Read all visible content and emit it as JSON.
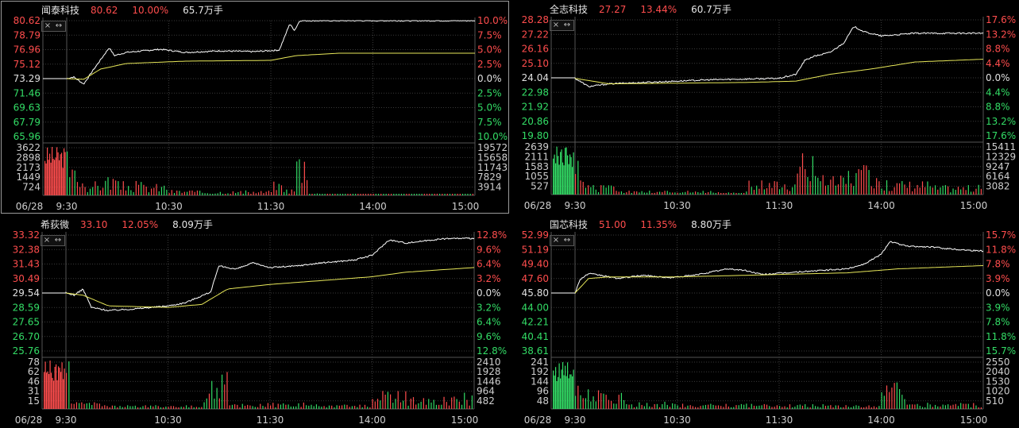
{
  "colors": {
    "up": "#ff4d4d",
    "down": "#33dd66",
    "price_line": "#ffffff",
    "avg_line": "#e8e85a",
    "grid": "#3a3a3a",
    "text": "#cfcfcf"
  },
  "time_labels": [
    "06/28",
    "9:30",
    "10:30",
    "11:30",
    "14:00",
    "15:00"
  ],
  "controls": {
    "close": "×",
    "expand": "↔"
  },
  "panels": [
    {
      "name": "闻泰科技",
      "price": "80.62",
      "change": "10.00%",
      "volume": "65.7万手",
      "selected": true,
      "chart_data": {
        "type": "line",
        "price_axis": {
          "left": [
            "80.62",
            "78.79",
            "76.96",
            "75.12",
            "73.29",
            "71.46",
            "69.63",
            "67.79",
            "65.96"
          ],
          "right": [
            "10.0%",
            "7.5%",
            "5.0%",
            "2.5%",
            "0.0%",
            "2.5%",
            "5.0%",
            "7.5%",
            "10.0%"
          ],
          "min": 65.96,
          "max": 80.62,
          "prev_close": 73.29
        },
        "volume_axis": {
          "left": [
            "3622",
            "2898",
            "2173",
            "1449",
            "724"
          ],
          "right": [
            "19572",
            "15658",
            "11743",
            "7829",
            "3914"
          ],
          "max": 3622
        },
        "x": [
          "9:30",
          "10:30",
          "11:30",
          "14:00",
          "15:00"
        ],
        "series": [
          {
            "type": "price",
            "points": [
              [
                0,
                73.29
              ],
              [
                4,
                73.5
              ],
              [
                10,
                72.6
              ],
              [
                15,
                74.2
              ],
              [
                22,
                76.3
              ],
              [
                25,
                77.2
              ],
              [
                28,
                76.2
              ],
              [
                35,
                76.6
              ],
              [
                45,
                76.8
              ],
              [
                55,
                77.0
              ],
              [
                70,
                76.6
              ],
              [
                90,
                76.8
              ],
              [
                110,
                76.7
              ],
              [
                125,
                76.9
              ],
              [
                128,
                78.5
              ],
              [
                131,
                80.2
              ],
              [
                134,
                79.4
              ],
              [
                137,
                80.62
              ],
              [
                150,
                80.62
              ],
              [
                170,
                80.62
              ],
              [
                240,
                80.62
              ]
            ]
          },
          {
            "type": "avg",
            "points": [
              [
                0,
                73.29
              ],
              [
                10,
                73.2
              ],
              [
                20,
                74.5
              ],
              [
                35,
                75.2
              ],
              [
                70,
                75.5
              ],
              [
                120,
                75.6
              ],
              [
                135,
                76.2
              ],
              [
                160,
                76.5
              ],
              [
                240,
                76.5
              ]
            ]
          }
        ],
        "volume": {
          "segments": [
            [
              0,
              1,
              1.0
            ],
            [
              1,
              3,
              0.95
            ],
            [
              3,
              8,
              0.6
            ],
            [
              8,
              12,
              0.4
            ],
            [
              12,
              20,
              0.3
            ],
            [
              20,
              30,
              0.45
            ],
            [
              30,
              45,
              0.3
            ],
            [
              45,
              60,
              0.25
            ],
            [
              60,
              75,
              0.12
            ],
            [
              75,
              100,
              0.1
            ],
            [
              100,
              120,
              0.1
            ],
            [
              120,
              128,
              0.3
            ],
            [
              128,
              135,
              0.15
            ],
            [
              135,
              142,
              1.0
            ],
            [
              142,
              150,
              0.05
            ],
            [
              150,
              240,
              0.03
            ]
          ]
        }
      }
    },
    {
      "name": "全志科技",
      "price": "27.27",
      "change": "13.44%",
      "volume": "60.7万手",
      "selected": false,
      "chart_data": {
        "type": "line",
        "price_axis": {
          "left": [
            "28.28",
            "27.22",
            "26.16",
            "25.10",
            "24.04",
            "22.98",
            "21.92",
            "20.86",
            "19.80"
          ],
          "right": [
            "17.6%",
            "13.2%",
            "8.8%",
            "4.4%",
            "0.0%",
            "4.4%",
            "8.8%",
            "13.2%",
            "17.6%"
          ],
          "min": 19.8,
          "max": 28.28,
          "prev_close": 24.04
        },
        "volume_axis": {
          "left": [
            "2639",
            "2111",
            "1583",
            "1055",
            "527"
          ],
          "right": [
            "15411",
            "12329",
            "9247",
            "6164",
            "3082"
          ],
          "max": 2639
        },
        "x": [
          "9:30",
          "10:30",
          "11:30",
          "14:00",
          "15:00"
        ],
        "series": [
          {
            "type": "price",
            "points": [
              [
                0,
                24.0
              ],
              [
                8,
                23.4
              ],
              [
                20,
                23.6
              ],
              [
                40,
                23.7
              ],
              [
                80,
                23.9
              ],
              [
                120,
                24.0
              ],
              [
                130,
                24.3
              ],
              [
                135,
                25.3
              ],
              [
                140,
                25.6
              ],
              [
                150,
                25.9
              ],
              [
                158,
                26.6
              ],
              [
                164,
                27.8
              ],
              [
                170,
                27.4
              ],
              [
                180,
                27.1
              ],
              [
                190,
                27.2
              ],
              [
                200,
                27.3
              ],
              [
                240,
                27.3
              ]
            ]
          },
          {
            "type": "avg",
            "points": [
              [
                0,
                24.0
              ],
              [
                20,
                23.6
              ],
              [
                100,
                23.7
              ],
              [
                130,
                23.8
              ],
              [
                150,
                24.3
              ],
              [
                175,
                24.7
              ],
              [
                200,
                25.2
              ],
              [
                240,
                25.4
              ]
            ]
          }
        ],
        "volume": {
          "segments": [
            [
              0,
              2,
              1.0
            ],
            [
              2,
              5,
              0.7
            ],
            [
              5,
              25,
              0.2
            ],
            [
              25,
              80,
              0.08
            ],
            [
              80,
              100,
              0.05
            ],
            [
              100,
              130,
              0.3
            ],
            [
              130,
              140,
              1.0
            ],
            [
              140,
              160,
              0.4
            ],
            [
              160,
              180,
              0.6
            ],
            [
              180,
              210,
              0.3
            ],
            [
              210,
              240,
              0.2
            ]
          ]
        }
      }
    },
    {
      "name": "希荻微",
      "price": "33.10",
      "change": "12.05%",
      "volume": "8.09万手",
      "selected": false,
      "chart_data": {
        "type": "line",
        "price_axis": {
          "left": [
            "33.32",
            "32.38",
            "31.43",
            "30.49",
            "29.54",
            "28.59",
            "27.65",
            "26.70",
            "25.76"
          ],
          "right": [
            "12.8%",
            "9.6%",
            "6.4%",
            "3.2%",
            "0.0%",
            "3.2%",
            "6.4%",
            "9.6%",
            "12.8%"
          ],
          "min": 25.76,
          "max": 33.32,
          "prev_close": 29.54
        },
        "volume_axis": {
          "left": [
            "78",
            "62",
            "46",
            "31",
            "15"
          ],
          "right": [
            "2410",
            "1928",
            "1446",
            "964",
            "482"
          ],
          "max": 78
        },
        "x": [
          "9:30",
          "10:30",
          "11:30",
          "14:00",
          "15:00"
        ],
        "series": [
          {
            "type": "price",
            "points": [
              [
                0,
                29.54
              ],
              [
                5,
                29.4
              ],
              [
                10,
                29.8
              ],
              [
                15,
                28.6
              ],
              [
                25,
                28.4
              ],
              [
                40,
                28.5
              ],
              [
                60,
                28.7
              ],
              [
                70,
                28.9
              ],
              [
                85,
                29.6
              ],
              [
                90,
                31.3
              ],
              [
                100,
                31.1
              ],
              [
                110,
                31.5
              ],
              [
                120,
                31.2
              ],
              [
                135,
                31.3
              ],
              [
                150,
                31.5
              ],
              [
                170,
                31.7
              ],
              [
                180,
                32.0
              ],
              [
                190,
                33.0
              ],
              [
                200,
                32.8
              ],
              [
                215,
                33.0
              ],
              [
                225,
                33.1
              ],
              [
                240,
                33.1
              ]
            ]
          },
          {
            "type": "avg",
            "points": [
              [
                0,
                29.54
              ],
              [
                10,
                29.4
              ],
              [
                25,
                28.7
              ],
              [
                60,
                28.6
              ],
              [
                80,
                28.8
              ],
              [
                95,
                29.8
              ],
              [
                120,
                30.1
              ],
              [
                180,
                30.6
              ],
              [
                200,
                30.9
              ],
              [
                240,
                31.2
              ]
            ]
          }
        ],
        "volume": {
          "segments": [
            [
              0,
              3,
              1.0
            ],
            [
              3,
              20,
              0.15
            ],
            [
              20,
              60,
              0.08
            ],
            [
              60,
              80,
              0.08
            ],
            [
              80,
              85,
              0.4
            ],
            [
              85,
              90,
              0.6
            ],
            [
              90,
              95,
              0.9
            ],
            [
              95,
              140,
              0.15
            ],
            [
              140,
              180,
              0.1
            ],
            [
              180,
              200,
              0.4
            ],
            [
              200,
              225,
              0.25
            ],
            [
              225,
              240,
              0.35
            ]
          ]
        }
      }
    },
    {
      "name": "国芯科技",
      "price": "51.00",
      "change": "11.35%",
      "volume": "8.80万手",
      "selected": false,
      "chart_data": {
        "type": "line",
        "price_axis": {
          "left": [
            "52.99",
            "51.19",
            "49.40",
            "47.60",
            "45.80",
            "44.00",
            "42.21",
            "40.41",
            "38.61"
          ],
          "right": [
            "15.7%",
            "11.8%",
            "7.8%",
            "3.9%",
            "0.0%",
            "3.9%",
            "7.8%",
            "11.8%",
            "15.7%"
          ],
          "min": 38.61,
          "max": 52.99,
          "prev_close": 45.8
        },
        "volume_axis": {
          "left": [
            "241",
            "192",
            "144",
            "96",
            "48"
          ],
          "right": [
            "2550",
            "2040",
            "1530",
            "1020",
            "510"
          ],
          "max": 241
        },
        "x": [
          "9:30",
          "10:30",
          "11:30",
          "14:00",
          "15:00"
        ],
        "series": [
          {
            "type": "price",
            "points": [
              [
                0,
                45.8
              ],
              [
                3,
                47.5
              ],
              [
                8,
                48.2
              ],
              [
                15,
                48.0
              ],
              [
                25,
                47.6
              ],
              [
                40,
                48.0
              ],
              [
                55,
                47.7
              ],
              [
                70,
                48.0
              ],
              [
                90,
                48.8
              ],
              [
                100,
                48.6
              ],
              [
                110,
                48.1
              ],
              [
                130,
                48.4
              ],
              [
                160,
                48.8
              ],
              [
                170,
                49.4
              ],
              [
                180,
                50.6
              ],
              [
                185,
                52.2
              ],
              [
                195,
                51.6
              ],
              [
                210,
                51.5
              ],
              [
                225,
                51.2
              ],
              [
                240,
                51.0
              ]
            ]
          },
          {
            "type": "avg",
            "points": [
              [
                0,
                45.8
              ],
              [
                8,
                47.6
              ],
              [
                20,
                47.8
              ],
              [
                60,
                47.8
              ],
              [
                120,
                48.1
              ],
              [
                160,
                48.3
              ],
              [
                190,
                48.8
              ],
              [
                240,
                49.2
              ]
            ]
          }
        ],
        "volume": {
          "segments": [
            [
              0,
              5,
              1.0
            ],
            [
              5,
              15,
              0.6
            ],
            [
              15,
              30,
              0.35
            ],
            [
              30,
              60,
              0.15
            ],
            [
              60,
              110,
              0.12
            ],
            [
              110,
              150,
              0.1
            ],
            [
              150,
              180,
              0.08
            ],
            [
              180,
              195,
              0.55
            ],
            [
              195,
              240,
              0.15
            ]
          ]
        }
      }
    }
  ]
}
